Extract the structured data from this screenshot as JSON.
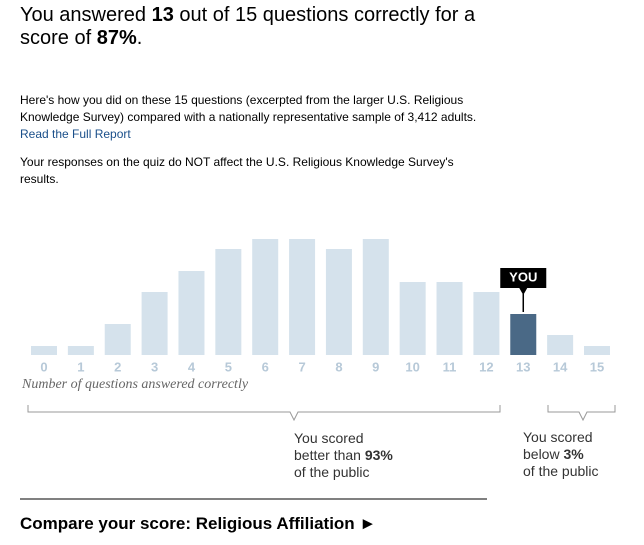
{
  "header": {
    "parts": [
      "You answered ",
      "13",
      " out of 15 questions correctly for a score of ",
      "87%",
      "."
    ]
  },
  "intro": {
    "text": "Here's how you did on these 15 questions (excerpted from the larger U.S. Religious Knowledge Survey) compared with a nationally representative sample of 3,412 adults. ",
    "link": "Read the Full Report"
  },
  "note": "Your responses on the quiz do NOT affect the U.S. Religious Knowledge Survey's results.",
  "chart_data": {
    "type": "bar",
    "x_label": "Number of questions answered correctly",
    "categories": [
      "0",
      "1",
      "2",
      "3",
      "4",
      "5",
      "6",
      "7",
      "8",
      "9",
      "10",
      "11",
      "12",
      "13",
      "14",
      "15"
    ],
    "values": [
      9,
      9,
      31,
      63,
      84,
      106,
      116,
      116,
      106,
      116,
      73,
      73,
      63,
      41,
      20,
      9
    ],
    "color": "#d5e2ec",
    "highlight_color": "#4a6986",
    "annotation": {
      "text": "YOU",
      "category": "13"
    }
  },
  "brackets": [
    {
      "lines": [
        "You scored",
        "better than ",
        "93%",
        "of the public"
      ]
    },
    {
      "lines": [
        "You scored",
        "below ",
        "3%",
        "of the public"
      ]
    }
  ],
  "footer": {
    "link": "Compare your score: Religious Affiliation ►"
  }
}
